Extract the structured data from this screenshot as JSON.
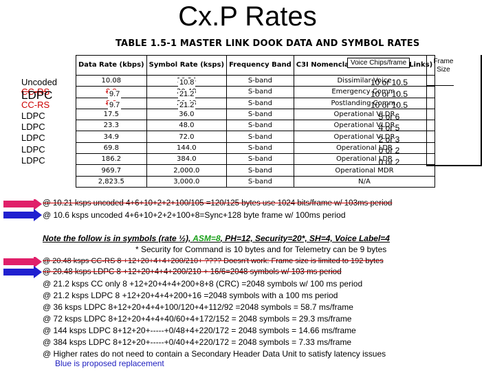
{
  "title": "Cx.P Rates",
  "table": {
    "caption": "TABLE 1.5-1  MASTER LINK DOOK DATA AND SYMBOL RATES",
    "headers": [
      "Data Rate (kbps)",
      "Symbol Rate (ksps)",
      "Frequency Band",
      "C3I Nomenclature (Non-Prox Links)"
    ],
    "rows": [
      [
        "10.08",
        "10.24",
        "S-band",
        "Dissimilar Voice"
      ],
      [
        "8.8",
        "20.48",
        "S-band",
        "Emergency Comm."
      ],
      [
        "8.8",
        "20.48",
        "S-band",
        "Postlanding Comm."
      ],
      [
        "17.5",
        "36.0",
        "S-band",
        "Operational VLDR"
      ],
      [
        "23.3",
        "48.0",
        "S-band",
        "Operational VLDR"
      ],
      [
        "34.9",
        "72.0",
        "S-band",
        "Operational VLDR"
      ],
      [
        "69.8",
        "144.0",
        "S-band",
        "Operational LDR"
      ],
      [
        "186.2",
        "384.0",
        "S-band",
        "Operational LDR"
      ],
      [
        "969.7",
        "2,000.0",
        "S-band",
        "Operational MDR"
      ],
      [
        "2,823.5",
        "3,000.0",
        "S-band",
        "N/A"
      ]
    ],
    "data_rate_overlays": [
      "9.7",
      "9.7"
    ],
    "symbol_rate_overlays": [
      "10.8",
      "21.2",
      "21.2"
    ]
  },
  "row_labels": [
    "Uncoded",
    "CC-RS",
    "LDPC",
    "CC-RS",
    "LDPC",
    "LDPC",
    "LDPC",
    "LDPC",
    "LDPC"
  ],
  "voice_chips": {
    "header": "Voice Chips/frame",
    "values": [
      "10 or 10.5",
      "10 or 10.5",
      "10 or 10.5",
      "5 or 6",
      "4 or 5",
      "2 or 3",
      "0 or 2",
      "0 or 2"
    ]
  },
  "frame_size": {
    "header_line1": "Frame",
    "header_line2": "Size"
  },
  "notes": {
    "line1": "@  10.21 ksps uncoded 4+6+10+2+2+100/105 =120/125 bytes  use 1024 bits/frame w/ 103ms period",
    "line2": "@  10.6 ksps uncoded  4+6+10+2+2+100+8=Sync+128 byte frame  w/ 100ms period",
    "symbols_intro": "Note the follow is in symbols (rate ½), ",
    "asm": "ASM=8",
    "symbols_rest": ", PH=12, Security=20*, SH=4, Voice Label=4",
    "security_note": "* Security for Command is 10 bytes and for Telemetry can be 9 bytes",
    "items": [
      "@   20.48 ksps CC-RS  8 +12+20+4+4+200/210+  ???? Doesn't work: Frame size is limited to 192 bytes",
      "@   20.48 ksps LDPC   8 +12+20+4+4+200/210 + 16/6=2048 symbols   w/  103 ms period",
      "@  21.2 ksps CC only 8 +12+20+4+4+200+8+8 (CRC) =2048 symbols w/  100 ms period",
      "@  21.2 ksps LDPC    8 +12+20+4+4+200+16 =2048 symbols  with a 100 ms period",
      "@   36 ksps LDPC        8+12+20+4+4+100/120+4+112/92 =2048 symbols = 58.7 ms/frame",
      "@   72 ksps LDPC        8+12+20+4+4+40/60+4+172/152 = 2048 symbols = 29.3 ms/frame",
      "@ 144 ksps LDPC        8+12+20+-----+0/48+4+220/172 = 2048 symbols = 14.66 ms/frame",
      "@ 384 ksps LDPC        8+12+20+-----+0/40+4+220/172 = 2048 symbols =  7.33 ms/frame",
      "@ Higher rates do not need to contain a Secondary Header Data Unit to satisfy latency issues"
    ],
    "footer": "Blue is proposed replacement"
  },
  "colors": {
    "red": "#cc0000",
    "blue": "#2020c0",
    "magenta": "#e0206a",
    "green": "#1aa01a"
  }
}
